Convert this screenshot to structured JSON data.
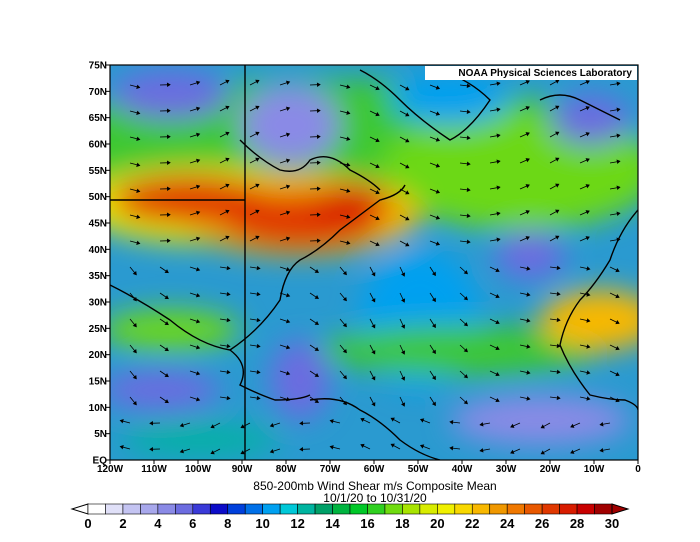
{
  "credit": "NOAA Physical Sciences Laboratory",
  "title_line1": "850-200mb Wind Shear m/s Composite Mean",
  "title_line2": "10/1/20  to 10/31/20",
  "lat_labels": [
    "75N",
    "70N",
    "65N",
    "60N",
    "55N",
    "50N",
    "45N",
    "40N",
    "35N",
    "30N",
    "25N",
    "20N",
    "15N",
    "10N",
    "5N",
    "EQ"
  ],
  "lon_labels": [
    "120W",
    "110W",
    "100W",
    "90W",
    "80W",
    "70W",
    "60W",
    "50W",
    "40W",
    "30W",
    "20W",
    "10W",
    "0"
  ],
  "colorbar": {
    "labels": [
      "0",
      "2",
      "4",
      "6",
      "8",
      "10",
      "12",
      "14",
      "16",
      "18",
      "20",
      "22",
      "24",
      "26",
      "28",
      "30"
    ],
    "colors": [
      "#ffffff",
      "#e0e0f8",
      "#c4c4f2",
      "#a8a8ec",
      "#8a8ae6",
      "#6c6ce0",
      "#3a3ad8",
      "#0c0cc8",
      "#0040dc",
      "#0070e8",
      "#00a0f0",
      "#00c8d8",
      "#00b4a0",
      "#00a068",
      "#00b440",
      "#00c828",
      "#30d020",
      "#70dc10",
      "#a8e400",
      "#d8ec00",
      "#f0f000",
      "#f8d800",
      "#f8b800",
      "#f09800",
      "#f07800",
      "#e85800",
      "#e03800",
      "#d81c00",
      "#c80000",
      "#a00000"
    ]
  },
  "map": {
    "lon_range": [
      -120,
      0
    ],
    "lat_range": [
      0,
      75
    ]
  }
}
